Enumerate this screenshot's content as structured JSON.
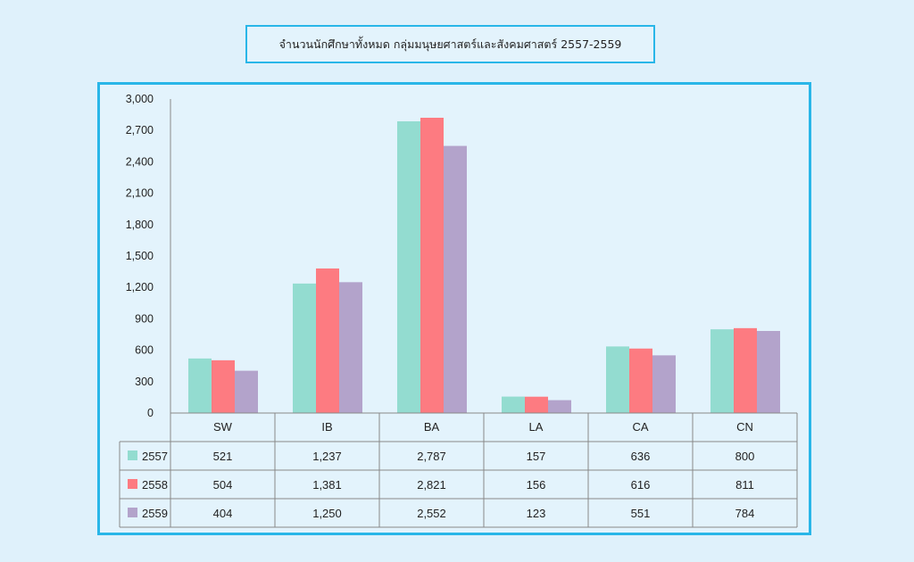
{
  "chart_data": {
    "type": "bar",
    "title": "จำนวนนักศึกษาทั้งหมด กลุ่มมนุษยศาสตร์และสังคมศาสตร์ 2557-2559",
    "categories": [
      "SW",
      "IB",
      "BA",
      "LA",
      "CA",
      "CN"
    ],
    "series": [
      {
        "name": "2557",
        "values": [
          521,
          1237,
          2787,
          157,
          636,
          800
        ],
        "color": "#93dcd0",
        "labels": [
          "521",
          "1,237",
          "2,787",
          "157",
          "636",
          "800"
        ]
      },
      {
        "name": "2558",
        "values": [
          504,
          1381,
          2821,
          156,
          616,
          811
        ],
        "color": "#fd7b81",
        "labels": [
          "504",
          "1,381",
          "2,821",
          "156",
          "616",
          "811"
        ]
      },
      {
        "name": "2559",
        "values": [
          404,
          1250,
          2552,
          123,
          551,
          784
        ],
        "color": "#b3a3cb",
        "labels": [
          "404",
          "1,250",
          "2,552",
          "123",
          "551",
          "784"
        ]
      }
    ],
    "ylim": [
      0,
      3000
    ],
    "yticks": [
      0,
      300,
      600,
      900,
      1200,
      1500,
      1800,
      2100,
      2400,
      2700,
      3000
    ],
    "ytick_labels": [
      "0",
      "300",
      "600",
      "900",
      "1,200",
      "1,500",
      "1,800",
      "2,100",
      "2,400",
      "2,700",
      "3,000"
    ],
    "legend": "data-table",
    "grid": false
  }
}
